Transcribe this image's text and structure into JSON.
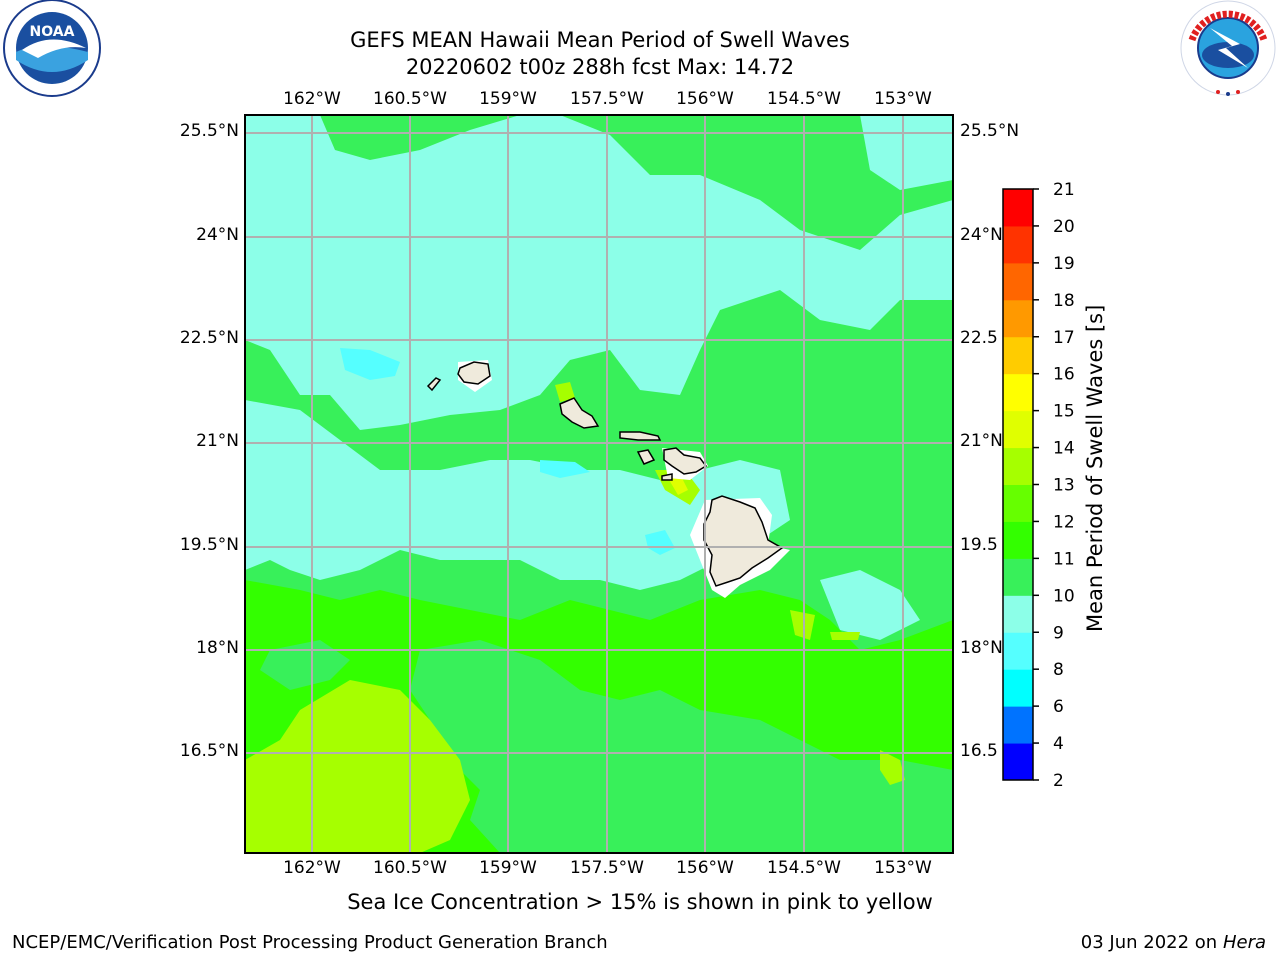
{
  "header": {
    "title_line1": "GEFS MEAN Hawaii Mean Period of Swell Waves",
    "title_line2": "20220602 t00z 288h fcst   Max: 14.72"
  },
  "logos": {
    "left": {
      "name": "noaa-logo",
      "text": "NOAA",
      "ring_text": "NATIONAL OCEANIC AND ATMOSPHERIC ADMINISTRATION · U.S. DEPARTMENT OF COMMERCE"
    },
    "right": {
      "name": "nws-logo",
      "ring_text": "NATIONAL WEATHER SERVICE"
    }
  },
  "map": {
    "lon_ticks": [
      "162°W",
      "160.5°W",
      "159°W",
      "157.5°W",
      "156°W",
      "154.5°W",
      "153°W"
    ],
    "lat_ticks_left": [
      "25.5°N",
      "24°N",
      "22.5°N",
      "21°N",
      "19.5°N",
      "18°N",
      "16.5°N"
    ],
    "lat_ticks_right": [
      "25.5°N",
      "24°N",
      "22.5",
      "21°N",
      "19.5",
      "18°N",
      "16.5"
    ],
    "grid": true
  },
  "colorbar": {
    "label": "Mean Period of Swell Waves [s]",
    "levels": [
      "2",
      "4",
      "6",
      "8",
      "9",
      "10",
      "11",
      "12",
      "13",
      "14",
      "15",
      "16",
      "17",
      "18",
      "19",
      "20",
      "21"
    ],
    "colors": [
      "#0000ff",
      "#0073ff",
      "#00ffff",
      "#55ffff",
      "#8cffe8",
      "#38f05a",
      "#33ff00",
      "#66ff00",
      "#a6ff00",
      "#e0ff00",
      "#ffff00",
      "#ffcc00",
      "#ff9900",
      "#ff6600",
      "#ff3300",
      "#ff0000"
    ]
  },
  "caption": "Sea Ice Concentration > 15% is shown in pink to yellow",
  "footer": {
    "left": "NCEP/EMC/Verification Post Processing Product Generation Branch",
    "date": "03 Jun 2022 on",
    "machine": "Hera"
  }
}
